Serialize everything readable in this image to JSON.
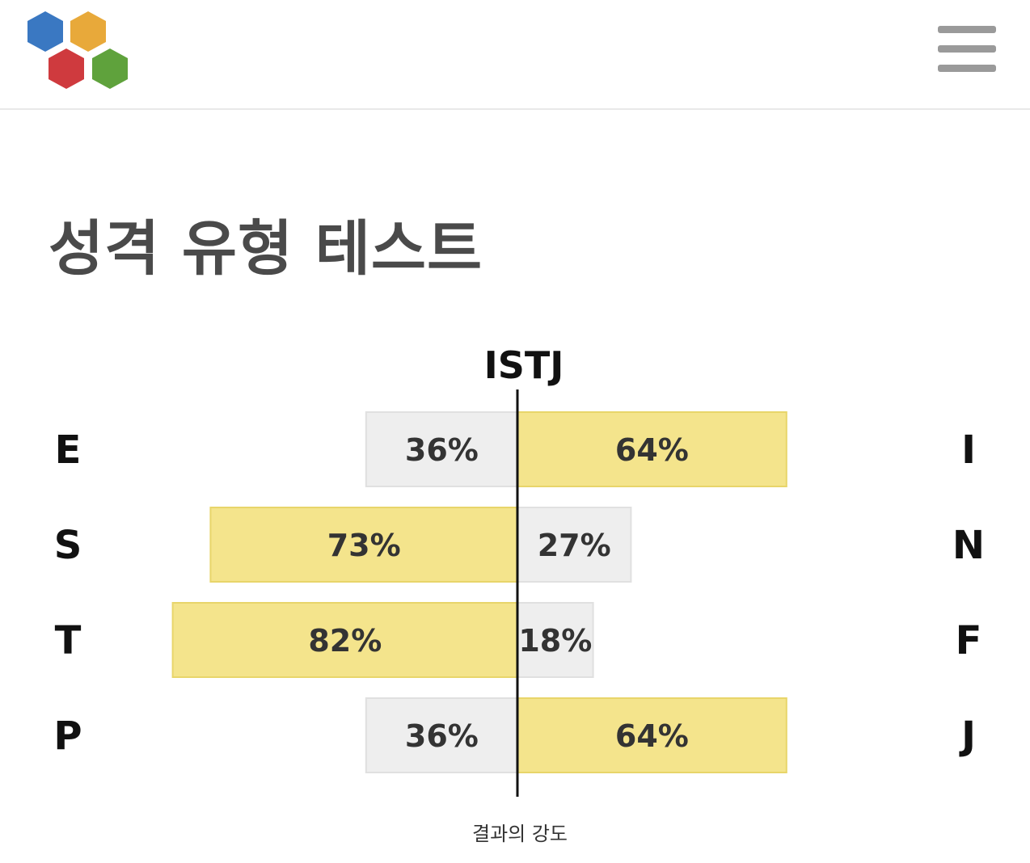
{
  "header": {
    "logo_icon": "hexagon-cluster-logo-icon",
    "logo_colors": [
      "#3a78c2",
      "#e8a93a",
      "#cf3a3e",
      "#5fa23c"
    ],
    "menu_icon": "hamburger-menu-icon"
  },
  "page": {
    "title": "성격 유형 테스트"
  },
  "chart_data": {
    "type": "bar",
    "orientation": "horizontal-diverging",
    "title": "ISTJ",
    "xlabel": "결과의 강도",
    "ylabel": "",
    "xlim": [
      -100,
      100
    ],
    "grid": false,
    "legend": "none",
    "colors": {
      "dominant": "#f4e48c",
      "dominant_edge": "#e8d56a",
      "other": "#eeeeee",
      "other_edge": "#e0e0e0",
      "center_line": "#111111"
    },
    "rows": [
      {
        "left_label": "E",
        "right_label": "I",
        "left_value": 36,
        "right_value": 64,
        "left_text": "36%",
        "right_text": "64%"
      },
      {
        "left_label": "S",
        "right_label": "N",
        "left_value": 73,
        "right_value": 27,
        "left_text": "73%",
        "right_text": "27%"
      },
      {
        "left_label": "T",
        "right_label": "F",
        "left_value": 82,
        "right_value": 18,
        "left_text": "82%",
        "right_text": "18%"
      },
      {
        "left_label": "P",
        "right_label": "J",
        "left_value": 36,
        "right_value": 64,
        "left_text": "36%",
        "right_text": "64%"
      }
    ]
  }
}
